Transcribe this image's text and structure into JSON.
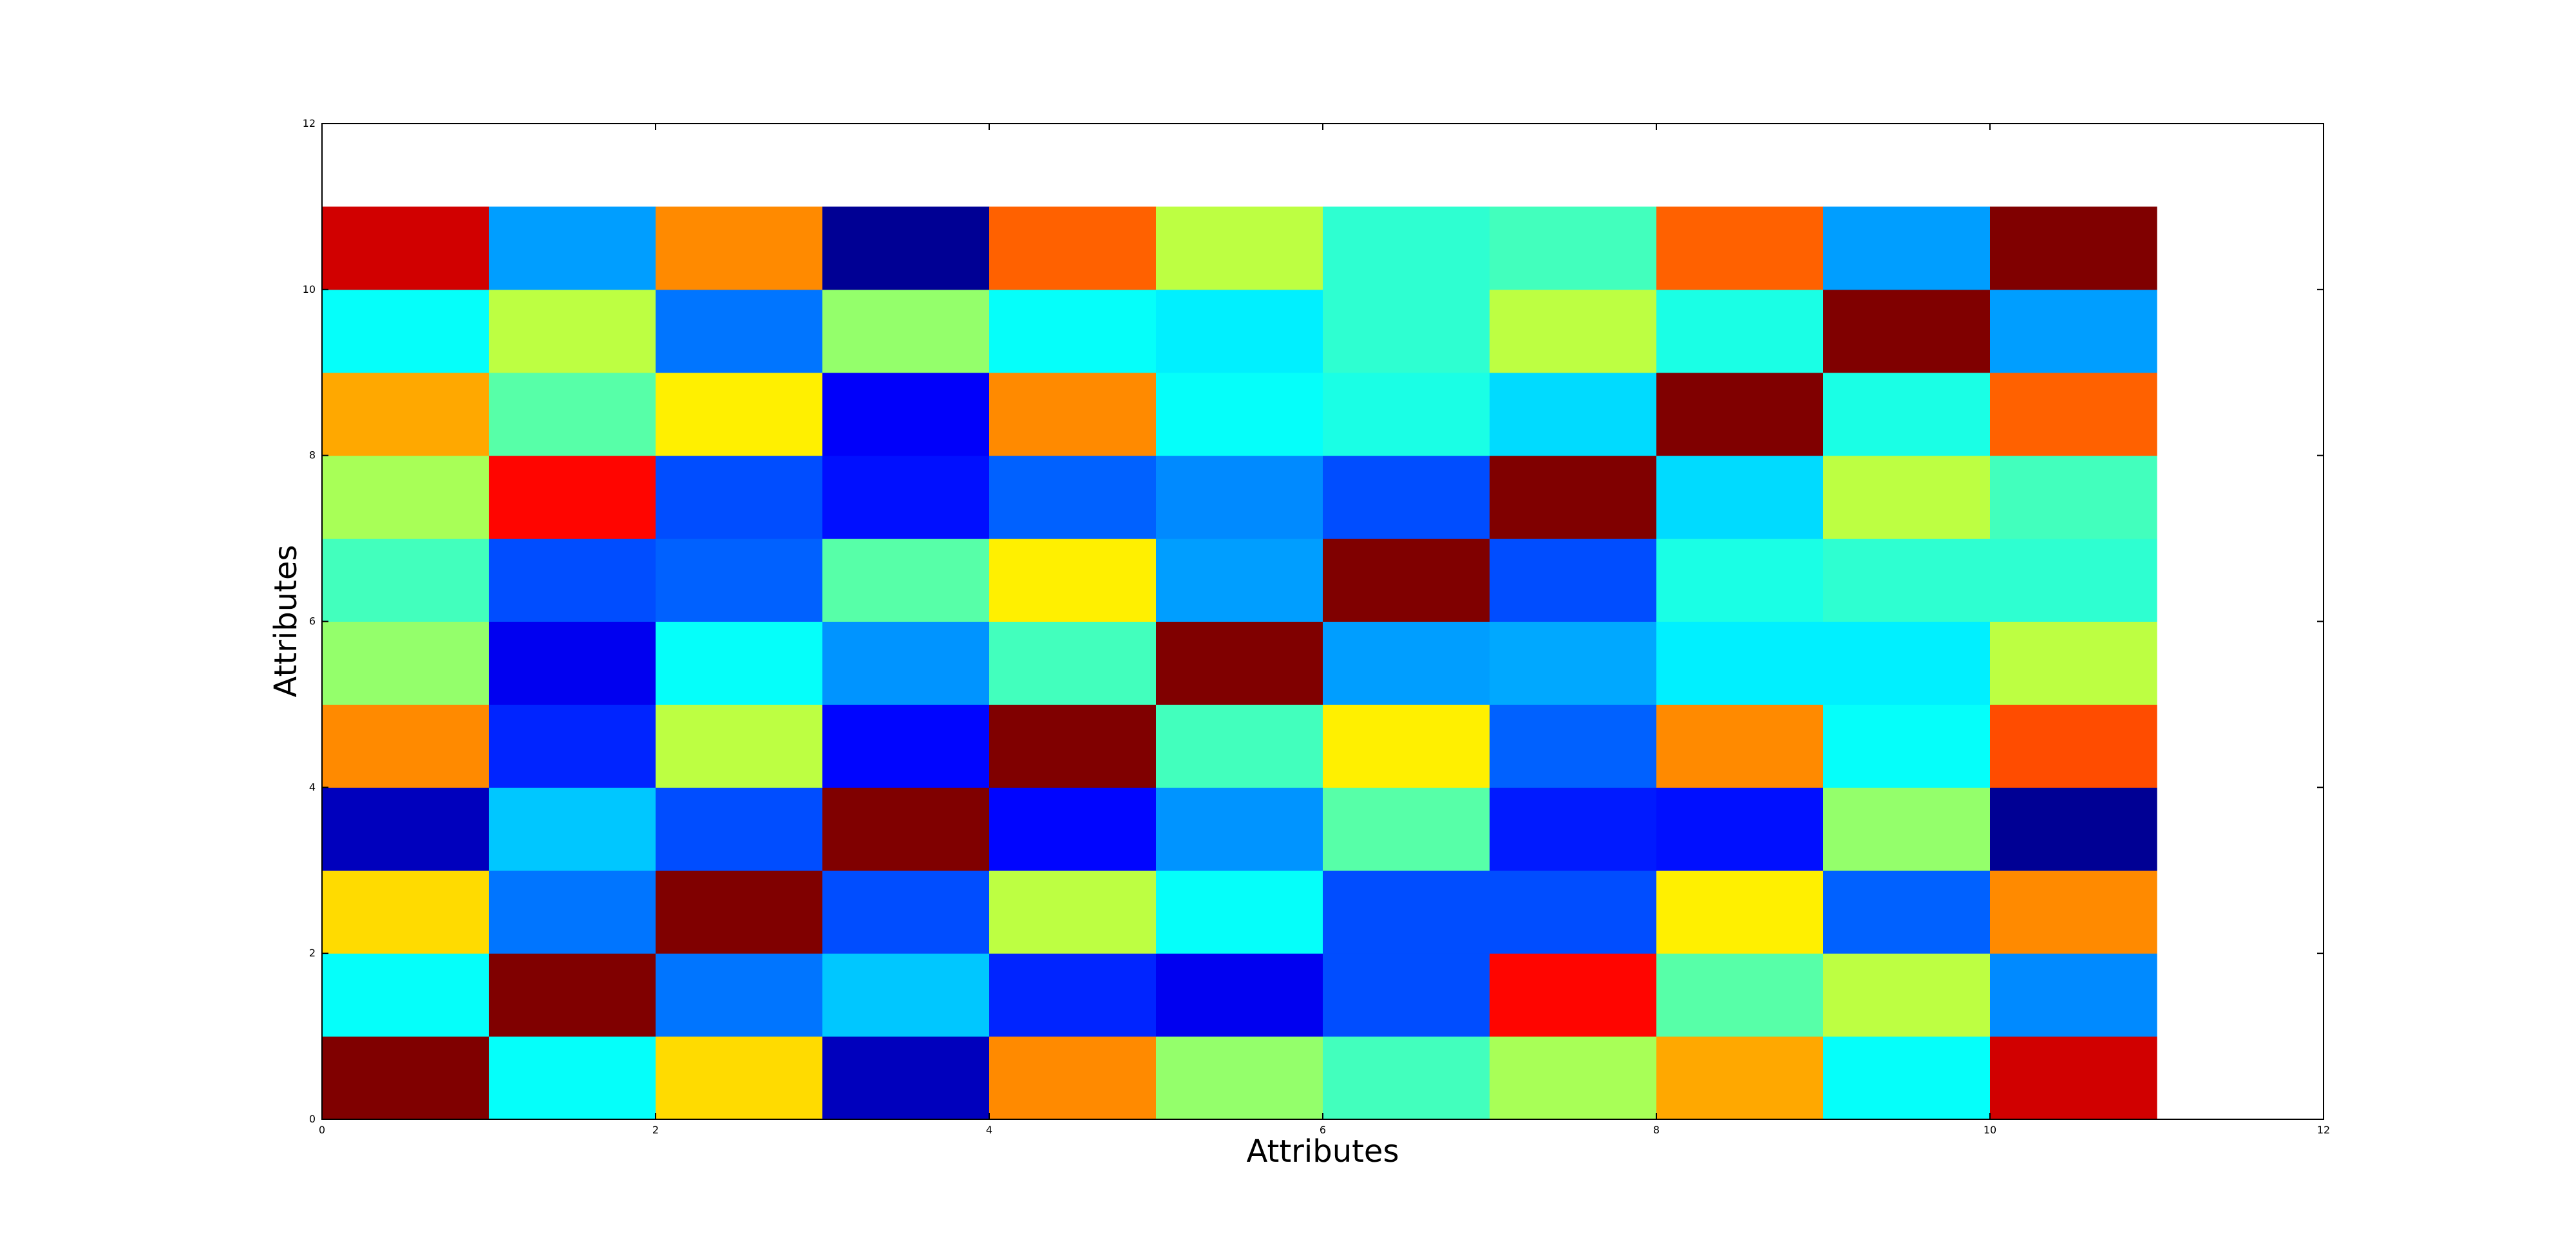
{
  "chart_data": {
    "type": "heatmap",
    "title": "",
    "xlabel": "Attributes",
    "ylabel": "Attributes",
    "xlim": [
      0,
      12
    ],
    "ylim": [
      0,
      12
    ],
    "xticks": [
      "0",
      "2",
      "4",
      "6",
      "8",
      "10",
      "12"
    ],
    "yticks": [
      "0",
      "2",
      "4",
      "6",
      "8",
      "10",
      "12"
    ],
    "grid": false,
    "colormap": "jet",
    "value_range": [
      0,
      1
    ],
    "rows_from_bottom": [
      [
        1.0,
        0.38,
        0.66,
        0.06,
        0.74,
        0.52,
        0.44,
        0.54,
        0.71,
        0.38,
        0.92
      ],
      [
        0.38,
        1.0,
        0.24,
        0.32,
        0.16,
        0.11,
        0.2,
        0.87,
        0.46,
        0.56,
        0.26
      ],
      [
        0.66,
        0.24,
        1.0,
        0.2,
        0.56,
        0.38,
        0.2,
        0.2,
        0.64,
        0.22,
        0.74
      ],
      [
        0.06,
        0.32,
        0.2,
        1.0,
        0.13,
        0.27,
        0.46,
        0.15,
        0.14,
        0.52,
        0.02
      ],
      [
        0.74,
        0.16,
        0.56,
        0.13,
        1.0,
        0.44,
        0.64,
        0.22,
        0.74,
        0.38,
        0.8
      ],
      [
        0.52,
        0.11,
        0.38,
        0.27,
        0.44,
        1.0,
        0.28,
        0.29,
        0.36,
        0.36,
        0.56
      ],
      [
        0.44,
        0.2,
        0.22,
        0.46,
        0.64,
        0.28,
        1.0,
        0.2,
        0.4,
        0.42,
        0.42
      ],
      [
        0.54,
        0.87,
        0.2,
        0.14,
        0.22,
        0.26,
        0.2,
        1.0,
        0.34,
        0.56,
        0.44
      ],
      [
        0.71,
        0.46,
        0.64,
        0.12,
        0.74,
        0.38,
        0.4,
        0.34,
        1.0,
        0.4,
        0.78
      ],
      [
        0.38,
        0.56,
        0.24,
        0.52,
        0.38,
        0.36,
        0.42,
        0.56,
        0.4,
        1.0,
        0.28
      ],
      [
        0.92,
        0.28,
        0.74,
        0.02,
        0.78,
        0.56,
        0.42,
        0.44,
        0.78,
        0.28,
        1.0
      ]
    ]
  }
}
